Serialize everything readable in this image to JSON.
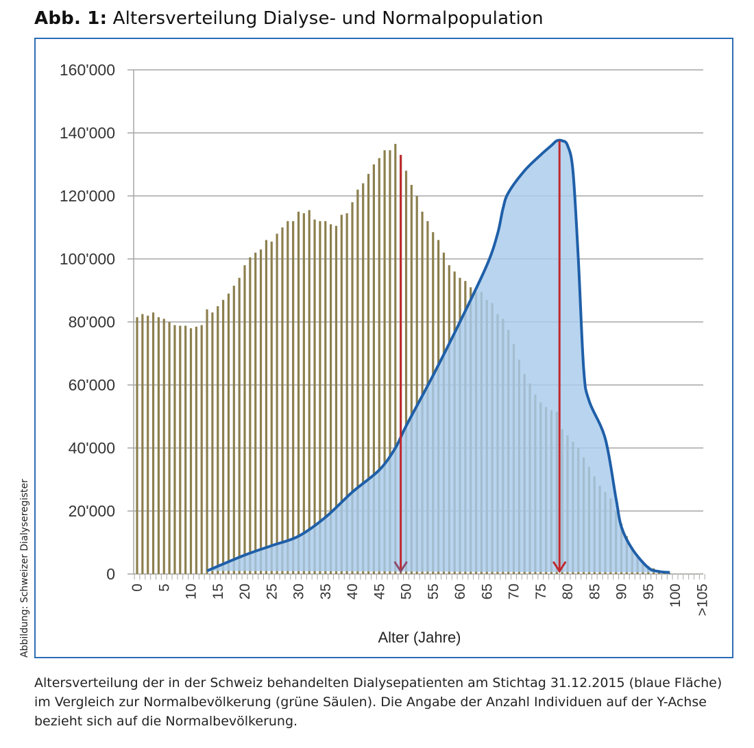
{
  "figure": {
    "title_bold": "Abb. 1:",
    "title_rest": " Altersverteilung Dialyse- und Normalpopulation",
    "side_note": "Abbildung: Schweizer Dialyseregister",
    "caption": "Altersverteilung der in der Schweiz behandelten Dialysepatienten am Stichtag 31.12.2015 (blaue Fläche) im Vergleich zur Normalbevölkerung (grüne Säulen). Die Angabe der Anzahl Individuen auf der Y-Achse bezieht sich auf die Normalbevölkerung."
  },
  "chart_data": {
    "type": "bar",
    "title": "Altersverteilung Dialyse- und Normalpopulation",
    "xlabel": "Alter (Jahre)",
    "ylabel": "",
    "ylim": [
      0,
      160000
    ],
    "y_ticks": [
      0,
      20000,
      40000,
      60000,
      80000,
      100000,
      120000,
      140000,
      160000
    ],
    "y_tick_labels": [
      "0",
      "20'000",
      "40'000",
      "60'000",
      "80'000",
      "100'000",
      "120'000",
      "140'000",
      "160'000"
    ],
    "x_tick_ages": [
      0,
      5,
      10,
      15,
      20,
      25,
      30,
      35,
      40,
      45,
      50,
      55,
      60,
      65,
      70,
      75,
      80,
      85,
      90,
      95,
      100,
      105
    ],
    "x_tick_labels": [
      "0",
      "5",
      "10",
      "15",
      "20",
      "25",
      "30",
      "35",
      "40",
      "45",
      "50",
      "55",
      "60",
      "65",
      "70",
      "75",
      "80",
      "85",
      "90",
      "95",
      "100",
      ">105"
    ],
    "grid": true,
    "colors": {
      "bars": "#8c7f4e",
      "area_fill": "#a8cbec",
      "area_line": "#1f5fa8",
      "arrow": "#c0282d",
      "grid": "#a6a6a6"
    },
    "series": [
      {
        "name": "Normalbevölkerung (grüne Säulen)",
        "type": "bar",
        "ages_start": 0,
        "values": [
          81500,
          82500,
          82000,
          83000,
          81500,
          81000,
          80000,
          79000,
          78800,
          78800,
          78000,
          78500,
          79000,
          84000,
          83000,
          85000,
          87000,
          89000,
          91500,
          94000,
          98000,
          100500,
          102000,
          103000,
          106000,
          105500,
          108000,
          110000,
          112000,
          112000,
          115000,
          114500,
          115500,
          112500,
          112000,
          112000,
          111000,
          110500,
          114000,
          114500,
          118000,
          122000,
          124000,
          127000,
          130000,
          132000,
          134500,
          134500,
          136500,
          133000,
          128000,
          123500,
          120000,
          115000,
          112000,
          108500,
          106000,
          102000,
          98000,
          96000,
          94000,
          93000,
          91000,
          89500,
          89500,
          87000,
          86000,
          82500,
          81000,
          77500,
          73000,
          68000,
          63500,
          60500,
          57000,
          54500,
          53000,
          52000,
          51500,
          46000,
          44000,
          42000,
          40000,
          37000,
          34000,
          31000,
          28000,
          26000,
          24000,
          20000,
          16000,
          12000,
          8500,
          6000,
          3500,
          2500,
          1800,
          1200,
          600,
          300,
          100,
          100,
          100,
          100,
          100,
          100
        ]
      },
      {
        "name": "Dialysepatienten (blaue Fläche)",
        "type": "area",
        "x": [
          13,
          20,
          25,
          30,
          35,
          40,
          45,
          48,
          50,
          55,
          60,
          65,
          67,
          68,
          69,
          72,
          75,
          77,
          78,
          79,
          80,
          81,
          82,
          83,
          84,
          87,
          89,
          90,
          92,
          95,
          97,
          99
        ],
        "values": [
          1000,
          6000,
          9000,
          12000,
          18000,
          26000,
          33000,
          40000,
          47000,
          63000,
          80000,
          98000,
          108000,
          116000,
          121000,
          128000,
          133000,
          136000,
          137500,
          137500,
          136000,
          128000,
          100000,
          65000,
          55000,
          43000,
          24000,
          15000,
          8000,
          2000,
          800,
          500
        ]
      }
    ],
    "annotations": [
      {
        "type": "arrow",
        "age": 49,
        "from_value": 133000,
        "to_value": 0,
        "meaning": "median normal population"
      },
      {
        "type": "arrow",
        "age": 78.5,
        "from_value": 137500,
        "to_value": 0,
        "meaning": "median dialysis population"
      }
    ]
  }
}
